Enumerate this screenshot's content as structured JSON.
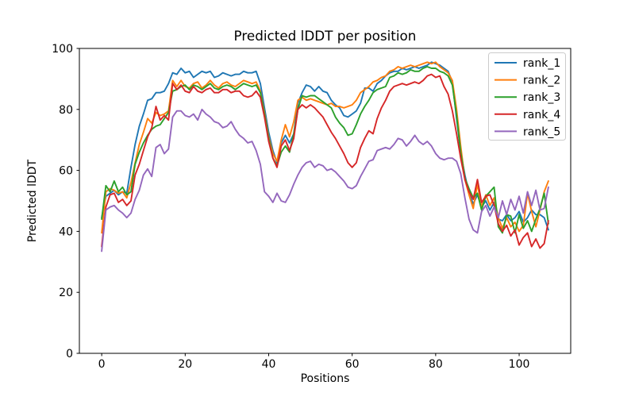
{
  "chart_data": {
    "type": "line",
    "title": "Predicted lDDT per position",
    "xlabel": "Positions",
    "ylabel": "Predicted lDDT",
    "xlim": [
      -5.35,
      112.35
    ],
    "ylim": [
      0,
      100
    ],
    "xticks": [
      0,
      20,
      40,
      60,
      80,
      100
    ],
    "yticks": [
      0,
      20,
      40,
      60,
      80,
      100
    ],
    "grid": false,
    "legend": {
      "position": "upper right",
      "entries": [
        "rank_1",
        "rank_2",
        "rank_3",
        "rank_4",
        "rank_5"
      ]
    },
    "x_range": {
      "start": 0,
      "end": 107,
      "step": 1
    },
    "series": [
      {
        "name": "rank_1",
        "color": "#1f77b4",
        "values": [
          44.5,
          51.5,
          52.5,
          53.5,
          52,
          53,
          52.5,
          61,
          68.5,
          74.5,
          78.5,
          83,
          83.5,
          85.5,
          85.5,
          86,
          88.5,
          92,
          91.5,
          93.5,
          92,
          92.5,
          90.5,
          91.5,
          92.5,
          92,
          92.5,
          90.5,
          91,
          92,
          91.5,
          91,
          91.5,
          91.5,
          92.5,
          92,
          92,
          92.5,
          88.5,
          80.5,
          72.5,
          66.5,
          62.5,
          69,
          71.5,
          69,
          72,
          82,
          85.5,
          88,
          87.5,
          86,
          87.5,
          86,
          85.5,
          83,
          81.5,
          80.5,
          78,
          77.5,
          78.5,
          79.5,
          82,
          87,
          87,
          86,
          88.5,
          89.5,
          91,
          92,
          92.5,
          92.5,
          93.5,
          93,
          93.5,
          94,
          93.5,
          94,
          94.5,
          95.5,
          95,
          94.5,
          93.5,
          92.5,
          89,
          77,
          66,
          58.5,
          52.5,
          49,
          52,
          48,
          50,
          47,
          49.5,
          44,
          43.5,
          45.5,
          43.5,
          44.5,
          46.5,
          43,
          44.5,
          47,
          45.5,
          45.5,
          44.5,
          40.5
        ]
      },
      {
        "name": "rank_2",
        "color": "#ff7f0e",
        "values": [
          39.5,
          53,
          54,
          53.5,
          52.5,
          53,
          51,
          56,
          62.5,
          68.5,
          72.5,
          77,
          75.5,
          79,
          78,
          78.5,
          79.5,
          89.5,
          87.5,
          89.5,
          87.5,
          87,
          88.5,
          89,
          87,
          88,
          89.5,
          88,
          87,
          88.5,
          89,
          88,
          87.5,
          88.5,
          89.5,
          89,
          88.5,
          89,
          86,
          79,
          71,
          65.5,
          63,
          70,
          75,
          71,
          76,
          83,
          84,
          83,
          83.5,
          83,
          82.5,
          82,
          81.5,
          82,
          81,
          81,
          80.5,
          81,
          81.5,
          83,
          85.5,
          86.5,
          87.5,
          89,
          89.5,
          90.5,
          91,
          92.5,
          93,
          94,
          93.5,
          94,
          94.5,
          94,
          94.5,
          95,
          95.5,
          95,
          95.5,
          94,
          93,
          92,
          89.5,
          80,
          68,
          57,
          52,
          47.5,
          55.5,
          48,
          52,
          48.5,
          51,
          44.5,
          41,
          44.5,
          41.5,
          43,
          40,
          42,
          52.5,
          46.5,
          41.5,
          47,
          53,
          56.5
        ]
      },
      {
        "name": "rank_3",
        "color": "#2ca02c",
        "values": [
          44,
          55,
          53,
          56.5,
          53,
          54.5,
          52,
          53,
          62,
          66,
          69,
          71.5,
          73.5,
          74.5,
          75,
          77,
          79,
          86,
          86.5,
          87.5,
          88,
          86.5,
          88,
          87.5,
          86.5,
          87.5,
          88.5,
          87,
          86.5,
          87.5,
          88,
          87.5,
          86.5,
          87.5,
          88.5,
          88,
          87.5,
          88,
          85.5,
          78.5,
          70.5,
          64,
          61.5,
          66,
          68,
          66,
          72,
          80,
          84.5,
          84,
          84.5,
          84.5,
          83.5,
          82.5,
          81.5,
          80.5,
          77.5,
          75.5,
          74,
          71.5,
          72,
          75,
          78.5,
          81,
          83,
          85.5,
          86.5,
          87,
          87.5,
          90.5,
          91,
          92,
          91.5,
          92,
          93,
          92.5,
          92.5,
          93.5,
          94,
          93.5,
          93.5,
          92.5,
          92,
          91,
          88,
          78,
          66,
          57.5,
          54,
          51,
          52.5,
          47,
          51.5,
          53,
          54.5,
          41.5,
          39.5,
          45.5,
          45,
          39.5,
          45.5,
          41,
          43.5,
          40,
          44,
          47.5,
          52.5,
          42.5
        ]
      },
      {
        "name": "rank_4",
        "color": "#d62728",
        "values": [
          35,
          48,
          52,
          52.5,
          49.5,
          50.5,
          48.5,
          50,
          58.5,
          62,
          66.5,
          71,
          74,
          81,
          76.5,
          78,
          76.5,
          88.5,
          86.5,
          88,
          86,
          85.5,
          87.5,
          86,
          85.5,
          86.5,
          87,
          85.5,
          85.5,
          86.5,
          86.5,
          85.5,
          86,
          86,
          84.5,
          84,
          84.5,
          86,
          84,
          77.5,
          69.5,
          64,
          61,
          68,
          70,
          66.5,
          70.5,
          80,
          81.5,
          80.5,
          81.5,
          80.5,
          79,
          77.5,
          75,
          72.5,
          70.5,
          68,
          65.5,
          62.5,
          61,
          62.5,
          67.5,
          70.5,
          73,
          72,
          77,
          80.5,
          83,
          86,
          87.5,
          88,
          88.5,
          88,
          88.5,
          89,
          88.5,
          89.5,
          91,
          91.5,
          90.5,
          91,
          87.5,
          85,
          79.5,
          72,
          64,
          57,
          53,
          50.5,
          57,
          49.5,
          51.5,
          52,
          48.5,
          42.5,
          40,
          42,
          38.5,
          40.5,
          35.5,
          38,
          39.5,
          35,
          37.5,
          34.5,
          36,
          43.5
        ]
      },
      {
        "name": "rank_5",
        "color": "#9467bd",
        "values": [
          33.5,
          47,
          48,
          48.5,
          47,
          46,
          44.5,
          46,
          50.5,
          53.5,
          58.5,
          60.5,
          58,
          67.5,
          68.5,
          65.5,
          67,
          77.5,
          79.5,
          79.5,
          78,
          77.5,
          78.5,
          76.5,
          80,
          78.5,
          77.5,
          76,
          75.5,
          74,
          74.5,
          76,
          73.5,
          71.5,
          70.5,
          69,
          69.5,
          66.5,
          62,
          53,
          51.5,
          49.5,
          52.5,
          50,
          49.5,
          52,
          55.5,
          58.5,
          61,
          62.5,
          63,
          61,
          62,
          61.5,
          60,
          60.5,
          59.5,
          58,
          56.5,
          54.5,
          54,
          55,
          58,
          60.5,
          63,
          63.5,
          66.5,
          67,
          67.5,
          67,
          68.5,
          70.5,
          70,
          68,
          69.5,
          71.5,
          69.5,
          68.5,
          69.5,
          68,
          65.5,
          64,
          63.5,
          64,
          64,
          63,
          59,
          51,
          44,
          40.5,
          39.5,
          46.5,
          48.5,
          45,
          48,
          44.5,
          50,
          45.5,
          50.5,
          47,
          51.5,
          46,
          53,
          48.5,
          53.5,
          47,
          47.5,
          54.5
        ]
      }
    ]
  }
}
